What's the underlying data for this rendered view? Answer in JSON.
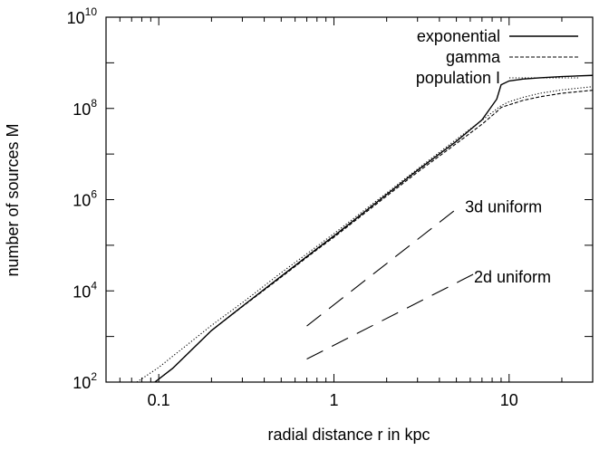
{
  "chart_data": {
    "type": "line",
    "xlabel": "radial distance r in kpc",
    "ylabel": "number of sources M",
    "xscale": "log",
    "yscale": "log",
    "xlim": [
      0.05,
      30
    ],
    "ylim": [
      100,
      10000000000
    ],
    "x_ticks": [
      {
        "value": 0.1,
        "label": "0.1"
      },
      {
        "value": 1,
        "label": "1"
      },
      {
        "value": 10,
        "label": "10"
      }
    ],
    "y_ticks": [
      {
        "value": 100,
        "base": "10",
        "exp": "2"
      },
      {
        "value": 10000,
        "base": "10",
        "exp": "4"
      },
      {
        "value": 1000000,
        "base": "10",
        "exp": "6"
      },
      {
        "value": 100000000,
        "base": "10",
        "exp": "8"
      },
      {
        "value": 10000000000,
        "base": "10",
        "exp": "10"
      }
    ],
    "grid": false,
    "legend_position": "top-right",
    "series": [
      {
        "name": "exponential",
        "style": "solid",
        "x": [
          0.095,
          0.12,
          0.2,
          0.3,
          0.5,
          0.8,
          1,
          2,
          3,
          5,
          7,
          8.5,
          9,
          10,
          12,
          15,
          20,
          30
        ],
        "y": [
          100,
          200,
          1350,
          4600,
          21000,
          84000,
          160000,
          1300000,
          4400000,
          19000000,
          56000000,
          160000000,
          330000000,
          400000000,
          440000000,
          470000000,
          500000000,
          530000000
        ]
      },
      {
        "name": "gamma",
        "style": "dashed",
        "x": [
          0.095,
          0.12,
          0.2,
          0.3,
          0.5,
          0.8,
          1,
          2,
          3,
          5,
          7,
          8.5,
          9,
          10,
          12,
          15,
          20,
          30
        ],
        "y": [
          100,
          200,
          1350,
          4500,
          20000,
          80000,
          150000,
          1200000,
          4000000,
          17000000,
          45000000,
          85000000,
          105000000,
          120000000,
          150000000,
          180000000,
          215000000,
          250000000
        ]
      },
      {
        "name": "population I",
        "style": "dotted",
        "x": [
          0.075,
          0.1,
          0.2,
          0.3,
          0.5,
          0.8,
          1,
          2,
          3,
          5,
          7,
          9,
          10,
          12,
          15,
          20,
          30
        ],
        "y": [
          100,
          210,
          1750,
          5500,
          25000,
          95000,
          180000,
          1400000,
          4700000,
          21000000,
          55000000,
          115000000,
          140000000,
          175000000,
          215000000,
          255000000,
          300000000
        ]
      },
      {
        "name": "",
        "style": "longdash",
        "x": [
          0.7,
          5.2
        ],
        "y": [
          1700,
          700000
        ]
      },
      {
        "name": "",
        "style": "longdash",
        "x": [
          0.7,
          6.5
        ],
        "y": [
          320,
          25000
        ]
      }
    ],
    "annotations": [
      {
        "text": "3d uniform",
        "x": 5.6,
        "y": 700000
      },
      {
        "text": "2d uniform",
        "x": 6.3,
        "y": 20000
      }
    ]
  }
}
